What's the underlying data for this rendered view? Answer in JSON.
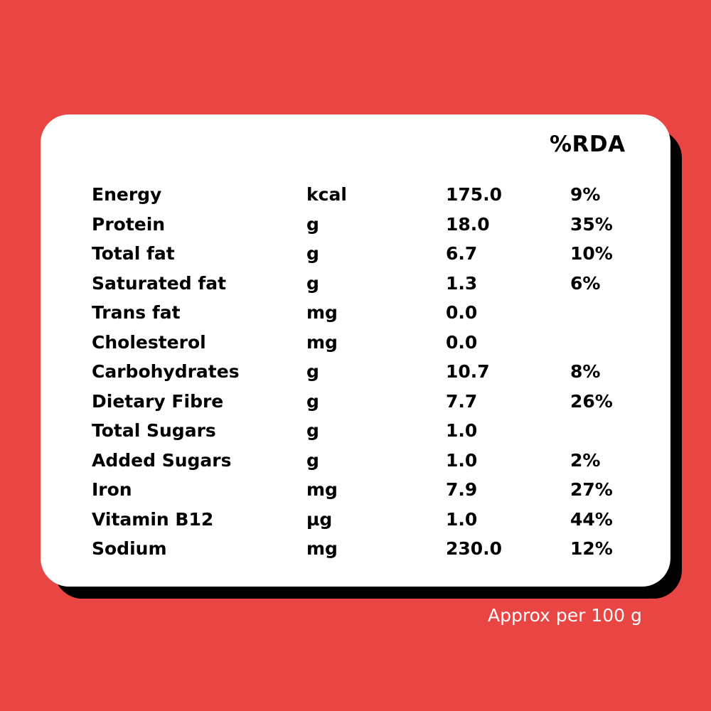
{
  "colors": {
    "background": "#E84543",
    "card": "#FFFFFF",
    "shadow": "#000000",
    "text": "#000000",
    "footer_text": "#FFFFFF"
  },
  "header": {
    "rda_label": "%RDA"
  },
  "rows": [
    {
      "name": "Energy",
      "unit": "kcal",
      "value": "175.0",
      "rda": "9%"
    },
    {
      "name": "Protein",
      "unit": "g",
      "value": "18.0",
      "rda": "35%"
    },
    {
      "name": "Total fat",
      "unit": "g",
      "value": "6.7",
      "rda": "10%"
    },
    {
      "name": "Saturated fat",
      "unit": "g",
      "value": "1.3",
      "rda": "6%"
    },
    {
      "name": "Trans fat",
      "unit": "mg",
      "value": "0.0",
      "rda": ""
    },
    {
      "name": "Cholesterol",
      "unit": "mg",
      "value": "0.0",
      "rda": ""
    },
    {
      "name": "Carbohydrates",
      "unit": "g",
      "value": "10.7",
      "rda": "8%"
    },
    {
      "name": "Dietary Fibre",
      "unit": "g",
      "value": "7.7",
      "rda": "26%"
    },
    {
      "name": "Total Sugars",
      "unit": "g",
      "value": "1.0",
      "rda": ""
    },
    {
      "name": "Added Sugars",
      "unit": "g",
      "value": "1.0",
      "rda": "2%"
    },
    {
      "name": "Iron",
      "unit": "mg",
      "value": "7.9",
      "rda": "27%"
    },
    {
      "name": "Vitamin B12",
      "unit": "µg",
      "value": "1.0",
      "rda": "44%"
    },
    {
      "name": "Sodium",
      "unit": "mg",
      "value": "230.0",
      "rda": "12%"
    }
  ],
  "footer": {
    "note": "Approx per 100 g"
  }
}
